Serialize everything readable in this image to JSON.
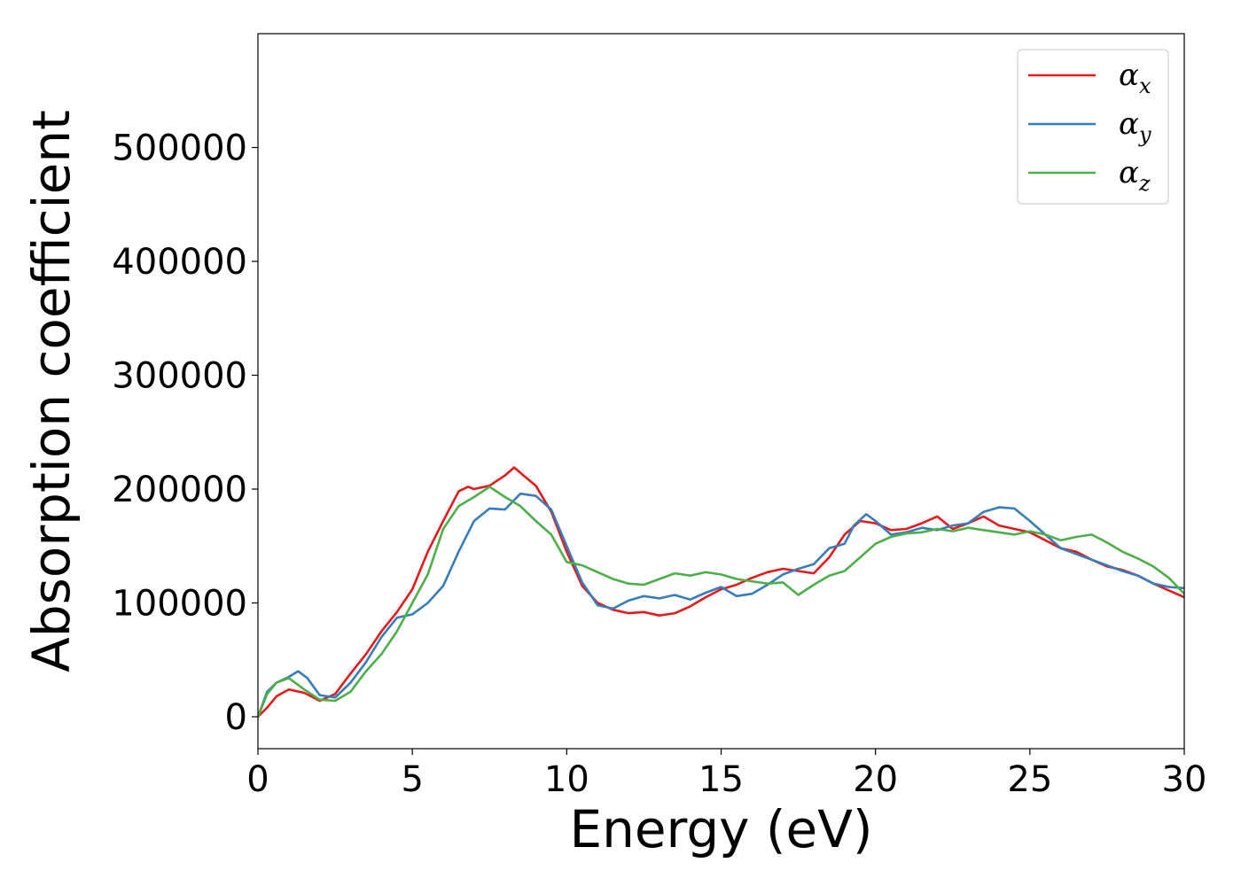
{
  "chart_data": {
    "type": "line",
    "title": "",
    "xlabel": "Energy (eV)",
    "ylabel": "Absorption coefficient",
    "xlim": [
      0,
      30
    ],
    "ylim": [
      -28000,
      600000
    ],
    "xticks": [
      "0",
      "5",
      "10",
      "15",
      "20",
      "25",
      "30"
    ],
    "xtick_values": [
      0,
      5,
      10,
      15,
      20,
      25,
      30
    ],
    "yticks": [
      "0",
      "100000",
      "200000",
      "300000",
      "400000",
      "500000"
    ],
    "ytick_values": [
      0,
      100000,
      200000,
      300000,
      400000,
      500000
    ],
    "grid": false,
    "legend_position": "top-right",
    "series": [
      {
        "name": "α_x",
        "legend_symbol": "α",
        "legend_subscript": "x",
        "color": "#e41a1c",
        "x": [
          0,
          0.3,
          0.6,
          1.0,
          1.5,
          2.0,
          2.5,
          3.0,
          3.5,
          4.0,
          4.5,
          5.0,
          5.5,
          6.0,
          6.5,
          6.8,
          7.0,
          7.5,
          8.0,
          8.3,
          8.6,
          9.0,
          9.5,
          10.0,
          10.5,
          11.0,
          11.5,
          12.0,
          12.5,
          13.0,
          13.5,
          14.0,
          14.5,
          15.0,
          15.5,
          16.0,
          16.5,
          17.0,
          17.5,
          18.0,
          18.5,
          19.0,
          19.5,
          20.0,
          20.5,
          21.0,
          21.5,
          22.0,
          22.5,
          23.0,
          23.5,
          24.0,
          24.5,
          25.0,
          25.5,
          26.0,
          26.5,
          27.0,
          27.5,
          28.0,
          28.5,
          29.0,
          29.5,
          30.0
        ],
        "y": [
          0,
          8000,
          18000,
          24000,
          21000,
          14000,
          20000,
          38000,
          55000,
          75000,
          92000,
          112000,
          145000,
          172000,
          198000,
          202000,
          200000,
          203000,
          212000,
          219000,
          212000,
          203000,
          180000,
          145000,
          115000,
          100000,
          94000,
          91000,
          92000,
          89000,
          91000,
          97000,
          105000,
          112000,
          116000,
          122000,
          127000,
          130000,
          128000,
          126000,
          140000,
          160000,
          172000,
          170000,
          164000,
          165000,
          170000,
          176000,
          165000,
          170000,
          176000,
          168000,
          165000,
          162000,
          155000,
          148000,
          145000,
          138000,
          132000,
          129000,
          124000,
          117000,
          111000,
          105000
        ]
      },
      {
        "name": "α_y",
        "legend_symbol": "α",
        "legend_subscript": "y",
        "color": "#377eb8",
        "x": [
          0,
          0.3,
          0.6,
          1.0,
          1.3,
          1.6,
          2.0,
          2.5,
          3.0,
          3.5,
          4.0,
          4.5,
          5.0,
          5.5,
          6.0,
          6.5,
          7.0,
          7.5,
          8.0,
          8.5,
          9.0,
          9.5,
          10.0,
          10.5,
          11.0,
          11.5,
          12.0,
          12.5,
          13.0,
          13.5,
          14.0,
          14.5,
          15.0,
          15.5,
          16.0,
          16.5,
          17.0,
          17.5,
          18.0,
          18.5,
          19.0,
          19.3,
          19.7,
          20.0,
          20.5,
          21.0,
          21.5,
          22.0,
          22.5,
          23.0,
          23.5,
          24.0,
          24.5,
          25.0,
          25.5,
          26.0,
          26.5,
          27.0,
          27.5,
          28.0,
          28.5,
          29.0,
          29.5,
          30.0
        ],
        "y": [
          0,
          22000,
          30000,
          35000,
          40000,
          34000,
          19000,
          17000,
          30000,
          48000,
          70000,
          87000,
          90000,
          100000,
          115000,
          145000,
          172000,
          183000,
          182000,
          196000,
          194000,
          182000,
          150000,
          118000,
          98000,
          95000,
          102000,
          106000,
          104000,
          107000,
          103000,
          109000,
          114000,
          106000,
          108000,
          116000,
          125000,
          130000,
          134000,
          148000,
          152000,
          168000,
          178000,
          172000,
          160000,
          162000,
          166000,
          164000,
          168000,
          170000,
          180000,
          184000,
          183000,
          172000,
          160000,
          148000,
          143000,
          138000,
          133000,
          128000,
          124000,
          117000,
          114000,
          113000
        ]
      },
      {
        "name": "α_z",
        "legend_symbol": "α",
        "legend_subscript": "z",
        "color": "#4daf4a",
        "x": [
          0,
          0.3,
          0.6,
          1.0,
          1.5,
          2.0,
          2.5,
          3.0,
          3.5,
          4.0,
          4.5,
          5.0,
          5.5,
          6.0,
          6.5,
          7.0,
          7.5,
          8.0,
          8.5,
          9.0,
          9.5,
          10.0,
          10.5,
          11.0,
          11.5,
          12.0,
          12.5,
          13.0,
          13.5,
          14.0,
          14.5,
          15.0,
          15.5,
          16.0,
          16.5,
          17.0,
          17.5,
          18.0,
          18.5,
          19.0,
          19.5,
          20.0,
          20.5,
          21.0,
          21.5,
          22.0,
          22.5,
          23.0,
          23.5,
          24.0,
          24.5,
          25.0,
          25.5,
          26.0,
          26.5,
          27.0,
          27.5,
          28.0,
          28.5,
          29.0,
          29.5,
          30.0
        ],
        "y": [
          0,
          20000,
          30000,
          34000,
          24000,
          15000,
          14000,
          22000,
          40000,
          55000,
          75000,
          100000,
          125000,
          165000,
          185000,
          193000,
          202000,
          193000,
          185000,
          172000,
          160000,
          136000,
          133000,
          127000,
          121000,
          117000,
          116000,
          121000,
          126000,
          124000,
          127000,
          125000,
          121000,
          119000,
          117000,
          118000,
          107000,
          116000,
          124000,
          128000,
          140000,
          152000,
          158000,
          161000,
          162000,
          165000,
          163000,
          166000,
          164000,
          162000,
          160000,
          163000,
          160000,
          155000,
          158000,
          160000,
          153000,
          145000,
          139000,
          132000,
          122000,
          108000
        ]
      }
    ]
  }
}
